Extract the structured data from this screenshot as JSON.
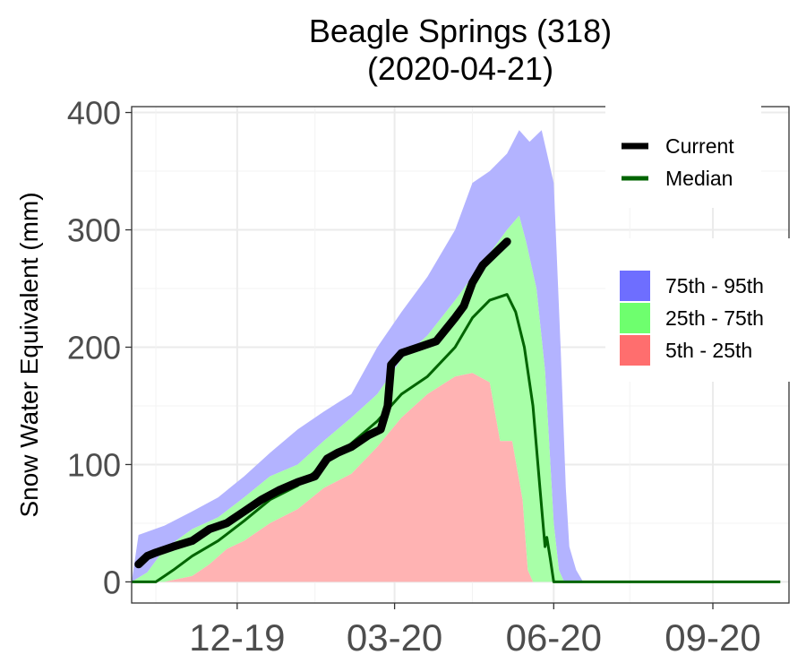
{
  "chart_data": {
    "type": "area",
    "title": "Beagle Springs (318)",
    "subtitle": "(2020-04-21)",
    "xlabel": "",
    "ylabel": "Snow Water Equivalent (mm)",
    "ylim": [
      -18,
      405
    ],
    "xlim": [
      "2019-10-01",
      "2020-10-15"
    ],
    "yticks": [
      0,
      100,
      200,
      300,
      400
    ],
    "xticks": [
      {
        "date": "2019-12-01",
        "label": "12-19"
      },
      {
        "date": "2020-03-01",
        "label": "03-20"
      },
      {
        "date": "2020-06-01",
        "label": "06-20"
      },
      {
        "date": "2020-09-01",
        "label": "09-20"
      }
    ],
    "grid": true,
    "colors": {
      "band_75_95": "#b3b3ff",
      "band_25_75": "#a8ffa8",
      "band_5_25": "#ffb3b3",
      "median": "#006400",
      "current": "#000000",
      "legend_75_95": "#6e6eff",
      "legend_25_75": "#6eff6e",
      "legend_5_25": "#ff6e6e"
    },
    "legend": {
      "placement": "right",
      "lines": [
        {
          "name": "Current",
          "key": "current"
        },
        {
          "name": "Median",
          "key": "median"
        }
      ],
      "fills": [
        {
          "name": "75th - 95th",
          "key": "legend_75_95"
        },
        {
          "name": "25th - 75th",
          "key": "legend_25_75"
        },
        {
          "name": "5th - 25th",
          "key": "legend_5_25"
        }
      ]
    },
    "series": [
      {
        "key": "p95",
        "points": [
          [
            "2019-10-01",
            0
          ],
          [
            "2019-10-05",
            40
          ],
          [
            "2019-10-20",
            48
          ],
          [
            "2019-11-05",
            60
          ],
          [
            "2019-11-20",
            72
          ],
          [
            "2019-12-05",
            90
          ],
          [
            "2019-12-20",
            110
          ],
          [
            "2020-01-05",
            130
          ],
          [
            "2020-01-20",
            145
          ],
          [
            "2020-02-05",
            160
          ],
          [
            "2020-02-20",
            200
          ],
          [
            "2020-03-05",
            230
          ],
          [
            "2020-03-20",
            260
          ],
          [
            "2020-04-05",
            300
          ],
          [
            "2020-04-15",
            340
          ],
          [
            "2020-04-25",
            350
          ],
          [
            "2020-05-05",
            365
          ],
          [
            "2020-05-12",
            385
          ],
          [
            "2020-05-18",
            375
          ],
          [
            "2020-05-25",
            385
          ],
          [
            "2020-06-01",
            340
          ],
          [
            "2020-06-05",
            200
          ],
          [
            "2020-06-08",
            80
          ],
          [
            "2020-06-10",
            30
          ],
          [
            "2020-06-14",
            10
          ],
          [
            "2020-06-18",
            0
          ],
          [
            "2020-10-10",
            0
          ]
        ]
      },
      {
        "key": "p75",
        "points": [
          [
            "2019-10-01",
            0
          ],
          [
            "2019-10-10",
            8
          ],
          [
            "2019-10-20",
            28
          ],
          [
            "2019-11-05",
            45
          ],
          [
            "2019-11-20",
            55
          ],
          [
            "2019-12-05",
            72
          ],
          [
            "2019-12-20",
            90
          ],
          [
            "2020-01-05",
            100
          ],
          [
            "2020-01-20",
            120
          ],
          [
            "2020-02-05",
            140
          ],
          [
            "2020-02-20",
            160
          ],
          [
            "2020-03-05",
            190
          ],
          [
            "2020-03-20",
            210
          ],
          [
            "2020-04-05",
            240
          ],
          [
            "2020-04-15",
            260
          ],
          [
            "2020-04-25",
            280
          ],
          [
            "2020-05-05",
            300
          ],
          [
            "2020-05-12",
            312
          ],
          [
            "2020-05-16",
            290
          ],
          [
            "2020-05-22",
            250
          ],
          [
            "2020-05-27",
            180
          ],
          [
            "2020-06-01",
            50
          ],
          [
            "2020-06-04",
            10
          ],
          [
            "2020-06-07",
            0
          ],
          [
            "2020-10-10",
            0
          ]
        ]
      },
      {
        "key": "median",
        "points": [
          [
            "2019-10-01",
            0
          ],
          [
            "2019-10-15",
            0
          ],
          [
            "2019-10-20",
            5
          ],
          [
            "2019-10-25",
            10
          ],
          [
            "2019-11-05",
            22
          ],
          [
            "2019-11-20",
            35
          ],
          [
            "2019-12-05",
            52
          ],
          [
            "2019-12-20",
            70
          ],
          [
            "2020-01-05",
            82
          ],
          [
            "2020-01-20",
            100
          ],
          [
            "2020-02-05",
            118
          ],
          [
            "2020-02-20",
            137
          ],
          [
            "2020-03-05",
            160
          ],
          [
            "2020-03-20",
            175
          ],
          [
            "2020-04-05",
            200
          ],
          [
            "2020-04-15",
            225
          ],
          [
            "2020-04-25",
            240
          ],
          [
            "2020-05-05",
            245
          ],
          [
            "2020-05-10",
            230
          ],
          [
            "2020-05-15",
            200
          ],
          [
            "2020-05-20",
            150
          ],
          [
            "2020-05-24",
            80
          ],
          [
            "2020-05-27",
            30
          ],
          [
            "2020-05-28",
            38
          ],
          [
            "2020-05-30",
            20
          ],
          [
            "2020-06-01",
            0
          ],
          [
            "2020-10-10",
            0
          ]
        ]
      },
      {
        "key": "p25",
        "points": [
          [
            "2019-10-01",
            0
          ],
          [
            "2019-10-20",
            0
          ],
          [
            "2019-11-05",
            5
          ],
          [
            "2019-11-15",
            15
          ],
          [
            "2019-11-25",
            28
          ],
          [
            "2019-12-05",
            35
          ],
          [
            "2019-12-20",
            50
          ],
          [
            "2020-01-05",
            62
          ],
          [
            "2020-01-20",
            80
          ],
          [
            "2020-02-05",
            92
          ],
          [
            "2020-02-20",
            115
          ],
          [
            "2020-03-05",
            140
          ],
          [
            "2020-03-20",
            160
          ],
          [
            "2020-04-05",
            175
          ],
          [
            "2020-04-15",
            178
          ],
          [
            "2020-04-25",
            170
          ],
          [
            "2020-05-01",
            120
          ],
          [
            "2020-05-08",
            120
          ],
          [
            "2020-05-14",
            70
          ],
          [
            "2020-05-17",
            10
          ],
          [
            "2020-05-20",
            0
          ],
          [
            "2020-10-10",
            0
          ]
        ]
      },
      {
        "key": "p5",
        "points": [
          [
            "2019-10-01",
            0
          ],
          [
            "2020-10-10",
            0
          ]
        ]
      },
      {
        "key": "current",
        "points": [
          [
            "2019-10-05",
            15
          ],
          [
            "2019-10-10",
            22
          ],
          [
            "2019-10-15",
            25
          ],
          [
            "2019-10-25",
            30
          ],
          [
            "2019-11-05",
            35
          ],
          [
            "2019-11-15",
            45
          ],
          [
            "2019-11-25",
            50
          ],
          [
            "2019-12-05",
            60
          ],
          [
            "2019-12-15",
            70
          ],
          [
            "2019-12-25",
            78
          ],
          [
            "2020-01-05",
            85
          ],
          [
            "2020-01-15",
            90
          ],
          [
            "2020-01-22",
            105
          ],
          [
            "2020-01-28",
            110
          ],
          [
            "2020-02-05",
            115
          ],
          [
            "2020-02-15",
            125
          ],
          [
            "2020-02-22",
            130
          ],
          [
            "2020-02-26",
            150
          ],
          [
            "2020-02-28",
            185
          ],
          [
            "2020-03-05",
            195
          ],
          [
            "2020-03-15",
            200
          ],
          [
            "2020-03-25",
            205
          ],
          [
            "2020-04-05",
            225
          ],
          [
            "2020-04-10",
            235
          ],
          [
            "2020-04-15",
            255
          ],
          [
            "2020-04-21",
            270
          ],
          [
            "2020-04-28",
            280
          ],
          [
            "2020-05-05",
            290
          ]
        ]
      }
    ]
  }
}
